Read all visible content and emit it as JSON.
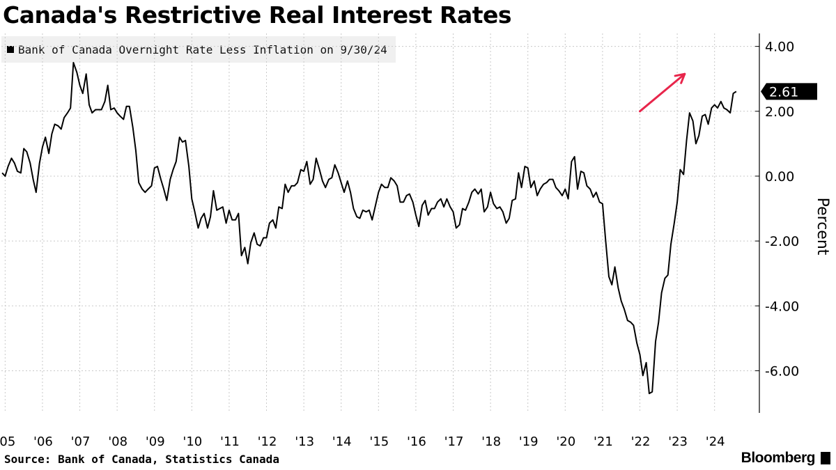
{
  "header": {
    "title": "Canada's Restrictive Real Interest Rates"
  },
  "legend": {
    "label": "Bank of Canada Overnight Rate Less Inflation on 9/30/24"
  },
  "footer": {
    "source": "Source: Bank of Canada, Statistics Canada",
    "brand": "Bloomberg"
  },
  "colors": {
    "line": "#000000",
    "arrow": "#e8254b",
    "grid": "#c8c8c8",
    "legend_bg": "#f0f0f0"
  },
  "chart_data": {
    "type": "line",
    "title": "Canada's Restrictive Real Interest Rates",
    "ylabel": "Percent",
    "xlabel": "",
    "ylim": [
      -7.3,
      4.4
    ],
    "xlim": [
      2004.9,
      2025.2
    ],
    "y_ticks": [
      4,
      2,
      0,
      -2,
      -4,
      -6
    ],
    "y_tick_labels": [
      "4.00",
      "2.00",
      "0.00",
      "-2.00",
      "-4.00",
      "-6.00"
    ],
    "x_ticks": [
      2005,
      2006,
      2007,
      2008,
      2009,
      2010,
      2011,
      2012,
      2013,
      2014,
      2015,
      2016,
      2017,
      2018,
      2019,
      2020,
      2021,
      2022,
      2023,
      2024
    ],
    "x_tick_labels": [
      "'05",
      "'06",
      "'07",
      "'08",
      "'09",
      "'10",
      "'11",
      "'12",
      "'13",
      "'14",
      "'15",
      "'16",
      "'17",
      "'18",
      "'19",
      "'20",
      "'21",
      "'22",
      "'23",
      "'24"
    ],
    "grid": true,
    "legend_position": "top-left",
    "last_value_label": "2.61",
    "series": [
      {
        "name": "Bank of Canada Overnight Rate Less Inflation on 9/30/24",
        "points": [
          [
            2004.92,
            0.1
          ],
          [
            2005.0,
            0.0
          ],
          [
            2005.08,
            0.3
          ],
          [
            2005.17,
            0.55
          ],
          [
            2005.25,
            0.4
          ],
          [
            2005.33,
            0.15
          ],
          [
            2005.42,
            0.1
          ],
          [
            2005.5,
            0.85
          ],
          [
            2005.58,
            0.75
          ],
          [
            2005.67,
            0.4
          ],
          [
            2005.75,
            -0.1
          ],
          [
            2005.83,
            -0.5
          ],
          [
            2005.92,
            0.4
          ],
          [
            2006.0,
            0.9
          ],
          [
            2006.08,
            1.2
          ],
          [
            2006.17,
            0.7
          ],
          [
            2006.25,
            1.3
          ],
          [
            2006.33,
            1.6
          ],
          [
            2006.42,
            1.55
          ],
          [
            2006.5,
            1.45
          ],
          [
            2006.58,
            1.8
          ],
          [
            2006.67,
            1.95
          ],
          [
            2006.75,
            2.1
          ],
          [
            2006.83,
            3.5
          ],
          [
            2006.92,
            3.2
          ],
          [
            2007.0,
            2.8
          ],
          [
            2007.08,
            2.55
          ],
          [
            2007.17,
            3.15
          ],
          [
            2007.25,
            2.2
          ],
          [
            2007.33,
            1.95
          ],
          [
            2007.42,
            2.05
          ],
          [
            2007.5,
            2.05
          ],
          [
            2007.58,
            2.05
          ],
          [
            2007.67,
            2.3
          ],
          [
            2007.75,
            2.8
          ],
          [
            2007.83,
            2.05
          ],
          [
            2007.92,
            2.1
          ],
          [
            2008.0,
            1.95
          ],
          [
            2008.08,
            1.85
          ],
          [
            2008.17,
            1.75
          ],
          [
            2008.25,
            2.15
          ],
          [
            2008.33,
            2.15
          ],
          [
            2008.42,
            1.5
          ],
          [
            2008.5,
            0.8
          ],
          [
            2008.58,
            -0.2
          ],
          [
            2008.67,
            -0.4
          ],
          [
            2008.75,
            -0.5
          ],
          [
            2008.83,
            -0.4
          ],
          [
            2008.92,
            -0.3
          ],
          [
            2009.0,
            0.25
          ],
          [
            2009.08,
            0.3
          ],
          [
            2009.17,
            -0.1
          ],
          [
            2009.25,
            -0.4
          ],
          [
            2009.33,
            -0.75
          ],
          [
            2009.42,
            -0.1
          ],
          [
            2009.5,
            0.2
          ],
          [
            2009.58,
            0.45
          ],
          [
            2009.67,
            1.2
          ],
          [
            2009.75,
            1.05
          ],
          [
            2009.83,
            1.1
          ],
          [
            2009.92,
            0.3
          ],
          [
            2010.0,
            -0.7
          ],
          [
            2010.08,
            -1.1
          ],
          [
            2010.17,
            -1.6
          ],
          [
            2010.25,
            -1.3
          ],
          [
            2010.33,
            -1.15
          ],
          [
            2010.42,
            -1.6
          ],
          [
            2010.5,
            -1.25
          ],
          [
            2010.58,
            -0.45
          ],
          [
            2010.67,
            -1.05
          ],
          [
            2010.75,
            -1.0
          ],
          [
            2010.83,
            -0.95
          ],
          [
            2010.92,
            -1.45
          ],
          [
            2011.0,
            -1.05
          ],
          [
            2011.08,
            -1.35
          ],
          [
            2011.17,
            -1.35
          ],
          [
            2011.25,
            -1.15
          ],
          [
            2011.33,
            -2.45
          ],
          [
            2011.42,
            -2.2
          ],
          [
            2011.5,
            -2.7
          ],
          [
            2011.58,
            -2.05
          ],
          [
            2011.67,
            -1.75
          ],
          [
            2011.75,
            -2.1
          ],
          [
            2011.83,
            -2.15
          ],
          [
            2011.92,
            -1.9
          ],
          [
            2012.0,
            -1.9
          ],
          [
            2012.08,
            -1.45
          ],
          [
            2012.17,
            -1.35
          ],
          [
            2012.25,
            -1.6
          ],
          [
            2012.33,
            -0.95
          ],
          [
            2012.42,
            -1.0
          ],
          [
            2012.5,
            -0.25
          ],
          [
            2012.58,
            -0.5
          ],
          [
            2012.67,
            -0.3
          ],
          [
            2012.75,
            -0.3
          ],
          [
            2012.83,
            -0.2
          ],
          [
            2012.92,
            0.2
          ],
          [
            2013.0,
            0.15
          ],
          [
            2013.08,
            0.45
          ],
          [
            2013.17,
            -0.25
          ],
          [
            2013.25,
            -0.1
          ],
          [
            2013.33,
            0.55
          ],
          [
            2013.42,
            0.2
          ],
          [
            2013.5,
            -0.15
          ],
          [
            2013.58,
            -0.35
          ],
          [
            2013.67,
            -0.1
          ],
          [
            2013.75,
            -0.05
          ],
          [
            2013.83,
            0.35
          ],
          [
            2013.92,
            0.1
          ],
          [
            2014.0,
            -0.2
          ],
          [
            2014.08,
            -0.5
          ],
          [
            2014.17,
            -0.15
          ],
          [
            2014.25,
            -0.5
          ],
          [
            2014.33,
            -1.0
          ],
          [
            2014.42,
            -1.25
          ],
          [
            2014.5,
            -1.3
          ],
          [
            2014.58,
            -1.05
          ],
          [
            2014.67,
            -1.1
          ],
          [
            2014.75,
            -1.05
          ],
          [
            2014.83,
            -1.35
          ],
          [
            2014.92,
            -0.9
          ],
          [
            2015.0,
            -0.5
          ],
          [
            2015.08,
            -0.25
          ],
          [
            2015.17,
            -0.35
          ],
          [
            2015.25,
            -0.35
          ],
          [
            2015.33,
            -0.05
          ],
          [
            2015.42,
            -0.15
          ],
          [
            2015.5,
            -0.3
          ],
          [
            2015.58,
            -0.8
          ],
          [
            2015.67,
            -0.8
          ],
          [
            2015.75,
            -0.6
          ],
          [
            2015.83,
            -0.55
          ],
          [
            2015.92,
            -0.8
          ],
          [
            2016.0,
            -1.2
          ],
          [
            2016.08,
            -1.55
          ],
          [
            2016.17,
            -0.9
          ],
          [
            2016.25,
            -0.75
          ],
          [
            2016.33,
            -1.2
          ],
          [
            2016.42,
            -1.0
          ],
          [
            2016.5,
            -1.0
          ],
          [
            2016.58,
            -0.8
          ],
          [
            2016.67,
            -0.7
          ],
          [
            2016.75,
            -0.95
          ],
          [
            2016.83,
            -0.7
          ],
          [
            2016.92,
            -0.95
          ],
          [
            2017.0,
            -1.1
          ],
          [
            2017.08,
            -1.6
          ],
          [
            2017.17,
            -1.5
          ],
          [
            2017.25,
            -1.0
          ],
          [
            2017.33,
            -1.05
          ],
          [
            2017.42,
            -0.8
          ],
          [
            2017.5,
            -0.5
          ],
          [
            2017.58,
            -0.4
          ],
          [
            2017.67,
            -0.55
          ],
          [
            2017.75,
            -0.4
          ],
          [
            2017.83,
            -1.1
          ],
          [
            2017.92,
            -0.95
          ],
          [
            2018.0,
            -0.5
          ],
          [
            2018.08,
            -0.85
          ],
          [
            2018.17,
            -1.0
          ],
          [
            2018.25,
            -0.95
          ],
          [
            2018.33,
            -1.1
          ],
          [
            2018.42,
            -1.45
          ],
          [
            2018.5,
            -1.3
          ],
          [
            2018.58,
            -0.75
          ],
          [
            2018.67,
            -0.7
          ],
          [
            2018.75,
            0.1
          ],
          [
            2018.83,
            -0.35
          ],
          [
            2018.92,
            0.3
          ],
          [
            2019.0,
            0.25
          ],
          [
            2019.08,
            -0.35
          ],
          [
            2019.17,
            -0.15
          ],
          [
            2019.25,
            -0.6
          ],
          [
            2019.33,
            -0.4
          ],
          [
            2019.42,
            -0.25
          ],
          [
            2019.5,
            -0.2
          ],
          [
            2019.58,
            -0.1
          ],
          [
            2019.67,
            -0.1
          ],
          [
            2019.75,
            -0.35
          ],
          [
            2019.83,
            -0.45
          ],
          [
            2019.92,
            -0.6
          ],
          [
            2020.0,
            -0.4
          ],
          [
            2020.08,
            -0.7
          ],
          [
            2020.17,
            0.45
          ],
          [
            2020.25,
            0.6
          ],
          [
            2020.33,
            -0.4
          ],
          [
            2020.42,
            0.15
          ],
          [
            2020.5,
            0.1
          ],
          [
            2020.58,
            -0.3
          ],
          [
            2020.67,
            -0.4
          ],
          [
            2020.75,
            -0.65
          ],
          [
            2020.83,
            -0.5
          ],
          [
            2020.92,
            -0.8
          ],
          [
            2021.0,
            -0.85
          ],
          [
            2021.08,
            -1.95
          ],
          [
            2021.17,
            -3.1
          ],
          [
            2021.25,
            -3.35
          ],
          [
            2021.33,
            -2.8
          ],
          [
            2021.42,
            -3.45
          ],
          [
            2021.5,
            -3.85
          ],
          [
            2021.58,
            -4.1
          ],
          [
            2021.67,
            -4.45
          ],
          [
            2021.75,
            -4.5
          ],
          [
            2021.83,
            -4.6
          ],
          [
            2021.92,
            -5.15
          ],
          [
            2022.0,
            -5.5
          ],
          [
            2022.08,
            -6.15
          ],
          [
            2022.17,
            -5.75
          ],
          [
            2022.25,
            -6.7
          ],
          [
            2022.33,
            -6.65
          ],
          [
            2022.42,
            -5.1
          ],
          [
            2022.5,
            -4.5
          ],
          [
            2022.58,
            -3.6
          ],
          [
            2022.67,
            -3.15
          ],
          [
            2022.75,
            -3.05
          ],
          [
            2022.83,
            -2.1
          ],
          [
            2022.92,
            -1.45
          ],
          [
            2023.0,
            -0.8
          ],
          [
            2023.08,
            0.2
          ],
          [
            2023.17,
            0.05
          ],
          [
            2023.25,
            1.1
          ],
          [
            2023.33,
            1.95
          ],
          [
            2023.42,
            1.7
          ],
          [
            2023.5,
            1.0
          ],
          [
            2023.58,
            1.25
          ],
          [
            2023.67,
            1.85
          ],
          [
            2023.75,
            1.9
          ],
          [
            2023.83,
            1.6
          ],
          [
            2023.92,
            2.1
          ],
          [
            2024.0,
            2.2
          ],
          [
            2024.08,
            2.1
          ],
          [
            2024.17,
            2.3
          ],
          [
            2024.25,
            2.1
          ],
          [
            2024.33,
            2.05
          ],
          [
            2024.42,
            1.95
          ],
          [
            2024.5,
            2.55
          ],
          [
            2024.58,
            2.61
          ]
        ]
      }
    ],
    "annotations": [
      {
        "type": "arrow",
        "from": [
          2022.0,
          2.0
        ],
        "to": [
          2023.2,
          3.15
        ],
        "color": "#e8254b"
      }
    ]
  }
}
